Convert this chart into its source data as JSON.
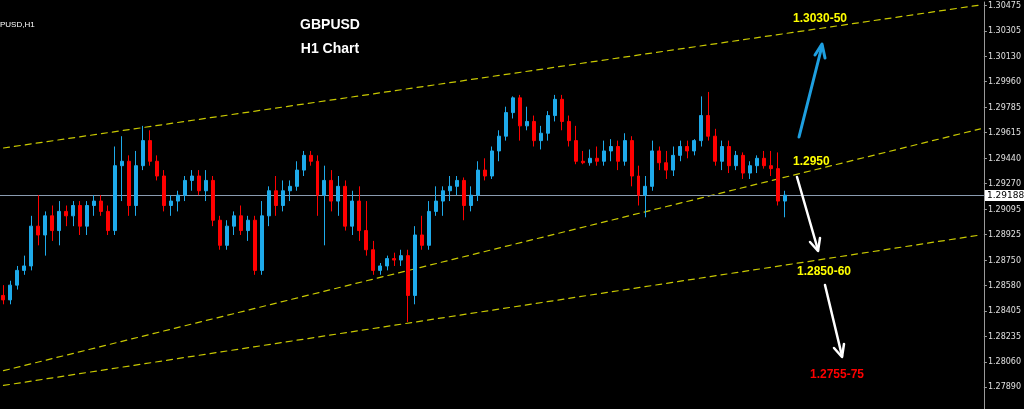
{
  "chart_data": {
    "type": "candlestick",
    "title": "GBPUSD",
    "subtitle": "H1 Chart",
    "annotations": [
      "PUSD,H1",
      "1.3030-50",
      "1.2950",
      "1.2850-60",
      "1.2755-75"
    ],
    "categories": [
      null,
      null,
      null,
      null,
      null,
      null,
      null,
      null,
      null,
      null,
      null,
      null,
      null,
      null,
      null,
      null,
      null,
      null,
      null,
      null,
      null,
      null,
      null,
      null,
      null,
      null,
      null,
      null,
      null,
      null,
      null,
      null,
      null,
      null,
      null,
      null,
      null,
      null,
      null,
      null,
      null,
      null,
      null,
      null,
      null,
      null,
      null,
      null,
      null,
      null,
      null,
      null,
      null,
      null,
      null,
      null,
      null,
      null,
      null,
      null,
      null,
      null,
      null,
      null,
      null,
      null,
      null,
      null,
      null,
      null,
      null,
      null,
      null,
      null,
      null,
      null,
      null,
      null,
      null,
      null,
      null,
      null,
      null,
      null,
      null,
      null,
      null,
      null,
      null,
      null,
      null,
      null,
      null,
      null,
      null,
      null,
      null,
      null,
      null,
      null,
      null,
      null,
      null,
      null,
      null,
      null,
      null,
      null,
      null,
      null,
      null,
      null,
      null,
      null,
      null,
      null,
      null,
      null,
      null,
      null,
      null,
      null,
      null,
      null,
      null,
      null,
      null,
      null,
      null,
      null,
      null,
      null,
      null,
      null,
      null,
      null,
      null,
      null,
      null,
      null,
      null
    ],
    "colors": [
      "#ff0000",
      "#1eaaea",
      "#1eaaea",
      "#1eaaea",
      "#1eaaea",
      "#ff0000",
      "#1eaaea",
      "#ff0000",
      "#1eaaea",
      "#ff0000",
      "#1eaaea",
      "#ff0000",
      "#1eaaea",
      "#1eaaea",
      "#ff0000",
      "#ff0000",
      "#1eaaea",
      "#1eaaea",
      "#ff0000",
      "#1eaaea",
      "#1eaaea",
      "#ff0000",
      "#ff0000",
      "#ff0000",
      "#1eaaea",
      "#1eaaea",
      "#1eaaea",
      "#1eaaea",
      "#ff0000",
      "#1eaaea",
      "#ff0000",
      "#ff0000",
      "#1eaaea",
      "#1eaaea",
      "#ff0000",
      "#1eaaea",
      "#ff0000",
      "#1eaaea",
      "#1eaaea",
      "#ff0000",
      "#1eaaea",
      "#1eaaea",
      "#1eaaea",
      "#1eaaea",
      "#ff0000",
      "#ff0000",
      "#1eaaea",
      "#ff0000",
      "#1eaaea",
      "#ff0000",
      "#1eaaea",
      "#ff0000",
      "#ff0000",
      "#ff0000",
      "#1eaaea",
      "#1eaaea",
      "#ff0000",
      "#1eaaea",
      "#ff0000",
      "#1eaaea",
      "#ff0000",
      "#1eaaea",
      "#1eaaea",
      "#1eaaea",
      "#1eaaea",
      "#1eaaea",
      "#ff0000",
      "#1eaaea",
      "#1eaaea",
      "#ff0000",
      "#1eaaea",
      "#1eaaea",
      "#1eaaea",
      "#1eaaea",
      "#ff0000",
      "#1eaaea",
      "#ff0000",
      "#1eaaea",
      "#1eaaea",
      "#1eaaea",
      "#ff0000",
      "#ff0000",
      "#ff0000",
      "#ff0000",
      "#1eaaea",
      "#ff0000",
      "#1eaaea",
      "#1eaaea",
      "#ff0000",
      "#1eaaea",
      "#ff0000",
      "#ff0000",
      "#1eaaea",
      "#1eaaea",
      "#ff0000",
      "#ff0000",
      "#1eaaea",
      "#1eaaea",
      "#ff0000",
      "#1eaaea",
      "#1eaaea",
      "#ff0000",
      "#ff0000",
      "#1eaaea",
      "#ff0000",
      "#1eaaea",
      "#ff0000",
      "#1eaaea",
      "#1eaaea",
      "#ff0000",
      "#ff0000",
      "#ff0000",
      "#1eaaea",
      null,
      null,
      null,
      null,
      null,
      null,
      null,
      null,
      null,
      null,
      null,
      null,
      null,
      null,
      null,
      null,
      null,
      null,
      null,
      null,
      null,
      null,
      null,
      null,
      null,
      null,
      null,
      null
    ],
    "ohlc": [
      [
        1.2851,
        1.2858,
        1.2845,
        1.2848
      ],
      [
        1.2848,
        1.2861,
        1.2845,
        1.2858
      ],
      [
        1.2858,
        1.2871,
        1.2855,
        1.2868
      ],
      [
        1.2868,
        1.2878,
        1.2865,
        1.2871
      ],
      [
        1.2871,
        1.2905,
        1.2868,
        1.2898
      ],
      [
        1.2898,
        1.2919,
        1.2885,
        1.2892
      ],
      [
        1.2892,
        1.2908,
        1.2878,
        1.2905
      ],
      [
        1.2905,
        1.2912,
        1.2888,
        1.2895
      ],
      [
        1.2895,
        1.2915,
        1.2885,
        1.2908
      ],
      [
        1.2908,
        1.2912,
        1.2898,
        1.2905
      ],
      [
        1.2905,
        1.2915,
        1.2898,
        1.2912
      ],
      [
        1.2912,
        1.2915,
        1.2892,
        1.2898
      ],
      [
        1.2898,
        1.2915,
        1.2892,
        1.2912
      ],
      [
        1.2912,
        1.2919,
        1.2905,
        1.2915
      ],
      [
        1.2915,
        1.2919,
        1.2905,
        1.2908
      ],
      [
        1.2908,
        1.2912,
        1.2892,
        1.2895
      ],
      [
        1.2895,
        1.2952,
        1.2892,
        1.2939
      ],
      [
        1.2939,
        1.2959,
        1.2915,
        1.2942
      ],
      [
        1.2942,
        1.2946,
        1.2905,
        1.2912
      ],
      [
        1.2912,
        1.2949,
        1.2905,
        1.2939
      ],
      [
        1.2939,
        1.2966,
        1.2936,
        1.2956
      ],
      [
        1.2956,
        1.2963,
        1.2939,
        1.2942
      ],
      [
        1.2942,
        1.2946,
        1.2929,
        1.2932
      ],
      [
        1.2932,
        1.2936,
        1.2908,
        1.2912
      ],
      [
        1.2912,
        1.2919,
        1.2905,
        1.2915
      ],
      [
        1.2915,
        1.2922,
        1.2908,
        1.2919
      ],
      [
        1.2919,
        1.2932,
        1.2915,
        1.2929
      ],
      [
        1.2929,
        1.2936,
        1.2922,
        1.2932
      ],
      [
        1.2932,
        1.2936,
        1.2919,
        1.2922
      ],
      [
        1.2922,
        1.2936,
        1.2915,
        1.2929
      ],
      [
        1.2929,
        1.2932,
        1.2898,
        1.2902
      ],
      [
        1.2902,
        1.2905,
        1.2882,
        1.2885
      ],
      [
        1.2885,
        1.2902,
        1.2882,
        1.2898
      ],
      [
        1.2898,
        1.2908,
        1.2892,
        1.2905
      ],
      [
        1.2905,
        1.2912,
        1.2892,
        1.2895
      ],
      [
        1.2895,
        1.2905,
        1.2888,
        1.2902
      ],
      [
        1.2902,
        1.2905,
        1.2865,
        1.2868
      ],
      [
        1.2868,
        1.2915,
        1.2865,
        1.2905
      ],
      [
        1.2905,
        1.2925,
        1.2898,
        1.2922
      ],
      [
        1.2922,
        1.2932,
        1.2905,
        1.2912
      ],
      [
        1.2912,
        1.2929,
        1.2908,
        1.2922
      ],
      [
        1.2922,
        1.2929,
        1.2915,
        1.2925
      ],
      [
        1.2925,
        1.2942,
        1.2922,
        1.2936
      ],
      [
        1.2936,
        1.2949,
        1.2932,
        1.2946
      ],
      [
        1.2946,
        1.2949,
        1.2939,
        1.2942
      ],
      [
        1.2942,
        1.2946,
        1.2905,
        1.2919
      ],
      [
        1.2919,
        1.2939,
        1.2885,
        1.2929
      ],
      [
        1.2929,
        1.2936,
        1.2908,
        1.2915
      ],
      [
        1.2915,
        1.2932,
        1.2905,
        1.2925
      ],
      [
        1.2925,
        1.2929,
        1.2895,
        1.2898
      ],
      [
        1.2898,
        1.2922,
        1.2892,
        1.2915
      ],
      [
        1.2915,
        1.2925,
        1.2888,
        1.2895
      ],
      [
        1.2895,
        1.2915,
        1.2878,
        1.2882
      ],
      [
        1.2882,
        1.2888,
        1.2865,
        1.2868
      ],
      [
        1.2868,
        1.2873,
        1.2865,
        1.2871
      ],
      [
        1.2871,
        1.2878,
        1.2868,
        1.2876
      ],
      [
        1.2876,
        1.288,
        1.2871,
        1.2875
      ],
      [
        1.2875,
        1.2882,
        1.2871,
        1.2878
      ],
      [
        1.2878,
        1.2882,
        1.2833,
        1.2851
      ],
      [
        1.2851,
        1.2898,
        1.2845,
        1.2892
      ],
      [
        1.2892,
        1.2905,
        1.2882,
        1.2885
      ],
      [
        1.2885,
        1.2915,
        1.2882,
        1.2908
      ],
      [
        1.2908,
        1.2925,
        1.2905,
        1.2915
      ],
      [
        1.2915,
        1.2925,
        1.2905,
        1.2922
      ],
      [
        1.2922,
        1.2932,
        1.2915,
        1.2925
      ],
      [
        1.2925,
        1.2932,
        1.2919,
        1.2929
      ],
      [
        1.2929,
        1.2931,
        1.2902,
        1.2912
      ],
      [
        1.2912,
        1.2925,
        1.2908,
        1.2919
      ],
      [
        1.2919,
        1.2942,
        1.2915,
        1.2936
      ],
      [
        1.2936,
        1.2944,
        1.2929,
        1.2932
      ],
      [
        1.2932,
        1.2952,
        1.293,
        1.2949
      ],
      [
        1.2949,
        1.2963,
        1.2942,
        1.2959
      ],
      [
        1.2959,
        1.2979,
        1.2956,
        1.2975
      ],
      [
        1.2975,
        1.2986,
        1.2971,
        1.2985
      ],
      [
        1.2985,
        1.2987,
        1.2956,
        1.2966
      ],
      [
        1.2966,
        1.2979,
        1.2963,
        1.2969
      ],
      [
        1.2969,
        1.2973,
        1.2952,
        1.2956
      ],
      [
        1.2956,
        1.2966,
        1.295,
        1.2961
      ],
      [
        1.2961,
        1.2976,
        1.2956,
        1.2973
      ],
      [
        1.2973,
        1.2987,
        1.2969,
        1.2984
      ],
      [
        1.2984,
        1.2987,
        1.2963,
        1.2969
      ],
      [
        1.2969,
        1.2973,
        1.2952,
        1.2956
      ],
      [
        1.2956,
        1.2966,
        1.294,
        1.2942
      ],
      [
        1.2942,
        1.2949,
        1.294,
        1.2941
      ],
      [
        1.2941,
        1.295,
        1.2939,
        1.2944
      ],
      [
        1.2944,
        1.2952,
        1.2939,
        1.2942
      ],
      [
        1.2942,
        1.2956,
        1.2939,
        1.2949
      ],
      [
        1.2949,
        1.2957,
        1.2942,
        1.2952
      ],
      [
        1.2952,
        1.2956,
        1.2936,
        1.2942
      ],
      [
        1.2942,
        1.2961,
        1.2939,
        1.2956
      ],
      [
        1.2956,
        1.2959,
        1.2925,
        1.2932
      ],
      [
        1.2932,
        1.2939,
        1.2912,
        1.2919
      ],
      [
        1.2919,
        1.2932,
        1.2904,
        1.2925
      ],
      [
        1.2925,
        1.2956,
        1.2922,
        1.2949
      ],
      [
        1.2949,
        1.2952,
        1.2936,
        1.2941
      ],
      [
        1.2941,
        1.2949,
        1.293,
        1.2936
      ],
      [
        1.2936,
        1.2952,
        1.2932,
        1.2946
      ],
      [
        1.2946,
        1.2956,
        1.2942,
        1.2952
      ],
      [
        1.2952,
        1.2956,
        1.2944,
        1.2949
      ],
      [
        1.2949,
        1.2957,
        1.2946,
        1.2956
      ],
      [
        1.2956,
        1.2986,
        1.2952,
        1.2973
      ],
      [
        1.2973,
        1.2989,
        1.2956,
        1.2959
      ],
      [
        1.2959,
        1.2964,
        1.2939,
        1.2942
      ],
      [
        1.2942,
        1.2956,
        1.2936,
        1.2952
      ],
      [
        1.2952,
        1.2956,
        1.2934,
        1.2939
      ],
      [
        1.2939,
        1.2949,
        1.2936,
        1.2946
      ],
      [
        1.2946,
        1.2948,
        1.293,
        1.2934
      ],
      [
        1.2934,
        1.2942,
        1.293,
        1.2939
      ],
      [
        1.2939,
        1.2946,
        1.2934,
        1.2944
      ],
      [
        1.2944,
        1.2949,
        1.2937,
        1.2939
      ],
      [
        1.2939,
        1.2949,
        1.2932,
        1.2937
      ],
      [
        1.2937,
        1.2948,
        1.2912,
        1.2915
      ],
      [
        1.2915,
        1.2922,
        1.2904,
        1.2919
      ],
      null,
      null,
      null,
      null,
      null,
      null,
      null,
      null,
      null,
      null,
      null,
      null,
      null,
      null,
      null,
      null,
      null,
      null,
      null,
      null,
      null,
      null,
      null,
      null,
      null,
      null,
      null,
      null
    ],
    "series": [
      {
        "type": "line",
        "color": "#c8c800",
        "line_style": "dashed",
        "values": [
          1.2951,
          null,
          null,
          null,
          null,
          null,
          null,
          null,
          null,
          null,
          null,
          null,
          null,
          null,
          null,
          null,
          null,
          null,
          null,
          null,
          null,
          null,
          null,
          null,
          null,
          null,
          null,
          null,
          null,
          null,
          null,
          null,
          null,
          null,
          null,
          null,
          null,
          null,
          null,
          null,
          null,
          null,
          null,
          null,
          null,
          null,
          null,
          null,
          null,
          null,
          null,
          null,
          null,
          null,
          null,
          null,
          null,
          null,
          null,
          null,
          null,
          null,
          null,
          null,
          null,
          null,
          null,
          null,
          null,
          null,
          null,
          null,
          null,
          null,
          null,
          null,
          null,
          null,
          null,
          null,
          null,
          null,
          null,
          null,
          null,
          null,
          null,
          null,
          null,
          null,
          null,
          null,
          null,
          null,
          null,
          null,
          null,
          null,
          null,
          null,
          null,
          null,
          null,
          null,
          null,
          null,
          null,
          null,
          null,
          null,
          null,
          null,
          null,
          null,
          null,
          null,
          null,
          null,
          null,
          null,
          null,
          null,
          null,
          null,
          null,
          null,
          null,
          null,
          null,
          null,
          null,
          null,
          null,
          null,
          null,
          null,
          null,
          null,
          null,
          null,
          1.3048
        ]
      },
      {
        "type": "line",
        "color": "#c8c800",
        "line_style": "dashed",
        "values": [
          1.28,
          null,
          null,
          null,
          null,
          null,
          null,
          null,
          null,
          null,
          null,
          null,
          null,
          null,
          null,
          null,
          null,
          null,
          null,
          null,
          null,
          null,
          null,
          null,
          null,
          null,
          null,
          null,
          null,
          null,
          null,
          null,
          null,
          null,
          null,
          null,
          null,
          null,
          null,
          null,
          null,
          null,
          null,
          null,
          null,
          null,
          null,
          null,
          null,
          null,
          null,
          null,
          null,
          null,
          null,
          null,
          null,
          null,
          null,
          null,
          null,
          null,
          null,
          null,
          null,
          null,
          null,
          null,
          null,
          null,
          null,
          null,
          null,
          null,
          null,
          null,
          null,
          null,
          null,
          null,
          null,
          null,
          null,
          null,
          null,
          null,
          null,
          null,
          null,
          null,
          null,
          null,
          null,
          null,
          null,
          null,
          null,
          null,
          null,
          null,
          null,
          null,
          null,
          null,
          null,
          null,
          null,
          null,
          null,
          null,
          null,
          null,
          null,
          null,
          null,
          null,
          null,
          null,
          null,
          null,
          null,
          null,
          null,
          null,
          null,
          null,
          null,
          null,
          null,
          null,
          null,
          null,
          null,
          null,
          null,
          null,
          null,
          null,
          null,
          null,
          1.2964
        ]
      },
      {
        "type": "line",
        "color": "#c8c800",
        "line_style": "dashed",
        "values": [
          1.279,
          null,
          null,
          null,
          null,
          null,
          null,
          null,
          null,
          null,
          null,
          null,
          null,
          null,
          null,
          null,
          null,
          null,
          null,
          null,
          null,
          null,
          null,
          null,
          null,
          null,
          null,
          null,
          null,
          null,
          null,
          null,
          null,
          null,
          null,
          null,
          null,
          null,
          null,
          null,
          null,
          null,
          null,
          null,
          null,
          null,
          null,
          null,
          null,
          null,
          null,
          null,
          null,
          null,
          null,
          null,
          null,
          null,
          null,
          null,
          null,
          null,
          null,
          null,
          null,
          null,
          null,
          null,
          null,
          null,
          null,
          null,
          null,
          null,
          null,
          null,
          null,
          null,
          null,
          null,
          null,
          null,
          null,
          null,
          null,
          null,
          null,
          null,
          null,
          null,
          null,
          null,
          null,
          null,
          null,
          null,
          null,
          null,
          null,
          null,
          null,
          null,
          null,
          null,
          null,
          null,
          null,
          null,
          null,
          null,
          null,
          null,
          null,
          null,
          null,
          null,
          null,
          null,
          null,
          null,
          null,
          null,
          null,
          null,
          null,
          null,
          null,
          null,
          null,
          null,
          null,
          null,
          null,
          null,
          null,
          null,
          null,
          null,
          null,
          null,
          1.2892
        ]
      }
    ],
    "ylim": [
      1.2774,
      1.305
    ],
    "yticks": [
      1.30475,
      1.30305,
      {
        "value": 1.3013,
        "label": "1.30130"
      },
      {
        "value": 1.2996,
        "label": "1.29960"
      },
      1.29785,
      1.29615,
      {
        "value": 1.2944,
        "label": "1.29440"
      },
      {
        "value": 1.2927,
        "label": "1.29270"
      },
      1.29095,
      1.28925,
      {
        "value": 1.2875,
        "label": "1.28750"
      },
      {
        "value": 1.2858,
        "label": "1.28580"
      },
      1.28405,
      1.28235,
      {
        "value": 1.2806,
        "label": "1.28060"
      },
      {
        "value": 1.2789,
        "label": "1.27890"
      }
    ],
    "ref_lines": [
      {
        "axis": "y",
        "value": 1.29188,
        "label": "1.29188",
        "color": "#8a9bb0"
      }
    ],
    "tick_labels": "y"
  }
}
